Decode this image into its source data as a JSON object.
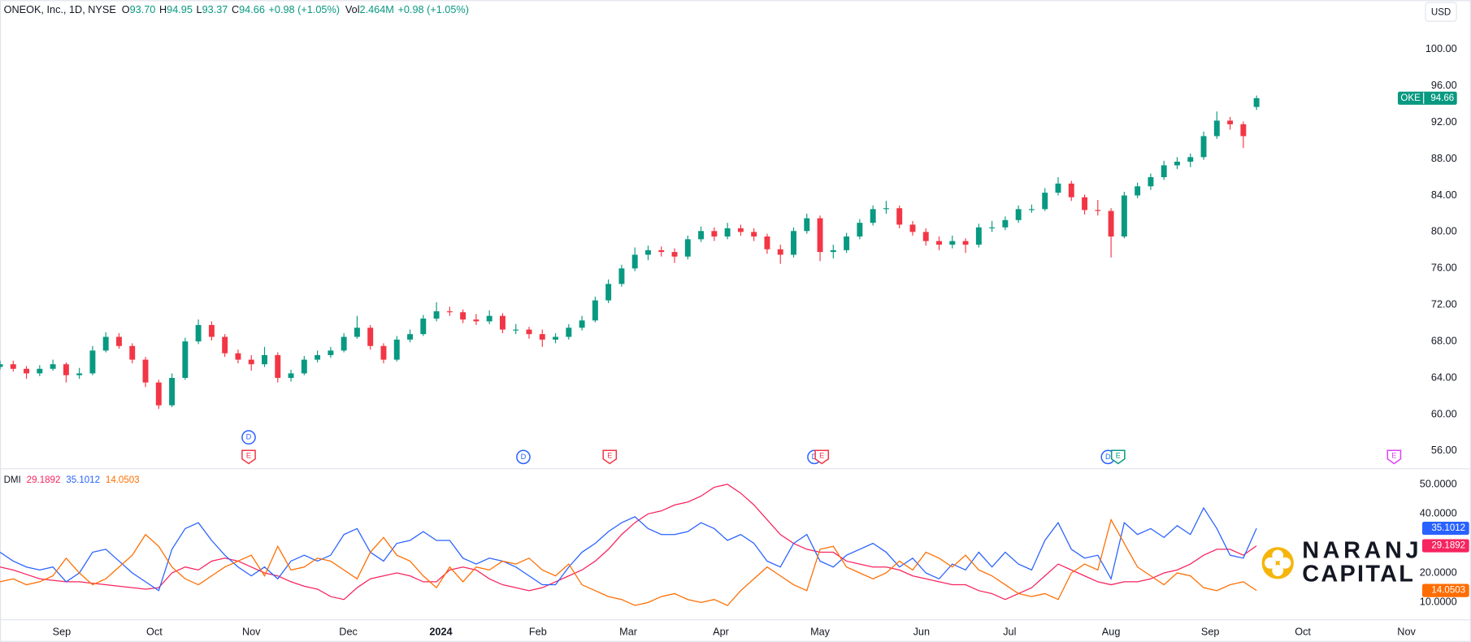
{
  "chart_data": [
    {
      "type": "candlestick",
      "legend": {
        "symbol": "ONEOK, Inc., 1D, NYSE",
        "fields": [
          {
            "label": "O",
            "value": "93.70"
          },
          {
            "label": "H",
            "value": "94.95"
          },
          {
            "label": "L",
            "value": "93.37"
          },
          {
            "label": "C",
            "value": "94.66"
          }
        ],
        "change": "+0.98 (+1.05%)",
        "volume_label": "Vol",
        "volume": "2.464M",
        "volume_change": "+0.98 (+1.05%)"
      },
      "currency": "USD",
      "up_color": "#089981",
      "down_color": "#f23645",
      "x": [
        0,
        3,
        6,
        9,
        12,
        15,
        18,
        21,
        24,
        27,
        30,
        33,
        36,
        39,
        42,
        45,
        48,
        51,
        54,
        57,
        60,
        63,
        66,
        69,
        72,
        75,
        78,
        81,
        84,
        87,
        90,
        93,
        96,
        99,
        102,
        105,
        108,
        111,
        114,
        117,
        120,
        123,
        126,
        129,
        132,
        135,
        138,
        141,
        144,
        147,
        150,
        153,
        156,
        159,
        162,
        165,
        168,
        171,
        174,
        177,
        180,
        183,
        186,
        189,
        192,
        195,
        198,
        201,
        204,
        207,
        210,
        213,
        216,
        219,
        222,
        225,
        228,
        231,
        234,
        237,
        240,
        243,
        246,
        249,
        252,
        255,
        258,
        261,
        264,
        267,
        270,
        273,
        276,
        279,
        282,
        285
      ],
      "ohlc": [
        [
          65.2,
          65.9,
          64.9,
          65.5
        ],
        [
          65.5,
          65.9,
          64.7,
          65
        ],
        [
          65,
          65.3,
          63.9,
          64.5
        ],
        [
          64.5,
          65.4,
          64.2,
          65
        ],
        [
          65,
          66,
          64.8,
          65.5
        ],
        [
          65.5,
          65.7,
          63.5,
          64.3
        ],
        [
          64.3,
          65.1,
          63.9,
          64.5
        ],
        [
          64.5,
          67.5,
          64.3,
          67
        ],
        [
          67,
          69,
          66.8,
          68.5
        ],
        [
          68.5,
          68.9,
          67.2,
          67.5
        ],
        [
          67.5,
          67.8,
          65.6,
          66
        ],
        [
          66,
          66.3,
          63,
          63.5
        ],
        [
          63.5,
          63.8,
          60.6,
          61
        ],
        [
          61,
          64.5,
          60.8,
          64
        ],
        [
          64,
          68.4,
          63.8,
          68
        ],
        [
          68,
          70.4,
          67.7,
          69.8
        ],
        [
          69.8,
          70.2,
          68.1,
          68.5
        ],
        [
          68.5,
          68.8,
          66.3,
          66.7
        ],
        [
          66.7,
          67.1,
          65.6,
          66
        ],
        [
          66,
          66.5,
          64.8,
          65.5
        ],
        [
          65.5,
          67.4,
          65.2,
          66.5
        ],
        [
          66.5,
          66.8,
          63.5,
          64
        ],
        [
          64,
          64.9,
          63.6,
          64.5
        ],
        [
          64.5,
          66.4,
          64.3,
          66
        ],
        [
          66,
          67,
          65.7,
          66.5
        ],
        [
          66.5,
          67.4,
          66.2,
          67
        ],
        [
          67,
          68.9,
          66.8,
          68.5
        ],
        [
          68.5,
          70.8,
          68.3,
          69.5
        ],
        [
          69.5,
          69.8,
          67.1,
          67.5
        ],
        [
          67.5,
          67.8,
          65.6,
          66
        ],
        [
          66,
          68.6,
          65.8,
          68.2
        ],
        [
          68.2,
          69.3,
          67.9,
          68.8
        ],
        [
          68.8,
          70.9,
          68.6,
          70.5
        ],
        [
          70.5,
          72.3,
          70.2,
          71.3
        ],
        [
          71.3,
          71.8,
          70.8,
          71.2
        ],
        [
          71.2,
          71.5,
          70,
          70.4
        ],
        [
          70.4,
          71,
          69.8,
          70.2
        ],
        [
          70.2,
          71.4,
          69.9,
          70.8
        ],
        [
          70.8,
          71.1,
          68.9,
          69.3
        ],
        [
          69.3,
          69.9,
          68.8,
          69.3
        ],
        [
          69.3,
          69.6,
          68.3,
          68.8
        ],
        [
          68.8,
          69.3,
          67.4,
          68.2
        ],
        [
          68.2,
          68.9,
          67.8,
          68.5
        ],
        [
          68.5,
          69.9,
          68.2,
          69.5
        ],
        [
          69.5,
          70.8,
          69.2,
          70.3
        ],
        [
          70.3,
          72.9,
          70.1,
          72.5
        ],
        [
          72.5,
          74.8,
          72.2,
          74.3
        ],
        [
          74.3,
          76.4,
          74,
          76
        ],
        [
          76,
          78.3,
          75.7,
          77.5
        ],
        [
          77.5,
          78.5,
          76.9,
          78
        ],
        [
          78,
          78.4,
          77.3,
          77.8
        ],
        [
          77.8,
          78.2,
          76.6,
          77.3
        ],
        [
          77.3,
          79.6,
          77,
          79.2
        ],
        [
          79.2,
          80.6,
          78.9,
          80.1
        ],
        [
          80.1,
          80.5,
          79,
          79.5
        ],
        [
          79.5,
          81,
          79.2,
          80.4
        ],
        [
          80.4,
          80.8,
          79.6,
          80
        ],
        [
          80,
          80.4,
          79,
          79.5
        ],
        [
          79.5,
          79.8,
          77.6,
          78.1
        ],
        [
          78.1,
          78.6,
          76.5,
          77.5
        ],
        [
          77.5,
          80.5,
          77.2,
          80.1
        ],
        [
          80.1,
          82,
          79.8,
          81.5
        ],
        [
          81.5,
          81.8,
          76.8,
          77.8
        ],
        [
          77.8,
          78.6,
          77.1,
          78
        ],
        [
          78,
          79.9,
          77.7,
          79.5
        ],
        [
          79.5,
          81.4,
          79.2,
          81
        ],
        [
          81,
          82.9,
          80.7,
          82.5
        ],
        [
          82.5,
          83.4,
          82,
          82.6
        ],
        [
          82.6,
          82.9,
          80.4,
          80.8
        ],
        [
          80.8,
          81.2,
          79.6,
          80
        ],
        [
          80,
          80.4,
          78.5,
          79
        ],
        [
          79,
          79.5,
          78,
          78.6
        ],
        [
          78.6,
          79.6,
          78.2,
          79
        ],
        [
          79,
          79.3,
          77.7,
          78.6
        ],
        [
          78.6,
          80.9,
          78.3,
          80.5
        ],
        [
          80.5,
          81.2,
          80,
          80.5
        ],
        [
          80.5,
          81.7,
          80.2,
          81.3
        ],
        [
          81.3,
          82.9,
          81,
          82.5
        ],
        [
          82.5,
          83,
          82.1,
          82.5
        ],
        [
          82.5,
          84.8,
          82.3,
          84.3
        ],
        [
          84.3,
          86,
          84,
          85.3
        ],
        [
          85.3,
          85.6,
          83.4,
          83.8
        ],
        [
          83.8,
          84.1,
          81.9,
          82.4
        ],
        [
          82.4,
          83.5,
          81.8,
          82.3
        ],
        [
          82.3,
          82.6,
          77.2,
          79.5
        ],
        [
          79.5,
          84.4,
          79.3,
          84
        ],
        [
          84,
          85.4,
          83.7,
          85
        ],
        [
          85,
          86.4,
          84.6,
          86
        ],
        [
          86,
          87.8,
          85.7,
          87.3
        ],
        [
          87.3,
          88.2,
          86.9,
          87.7
        ],
        [
          87.7,
          88.6,
          87.1,
          88.2
        ],
        [
          88.2,
          91,
          87.9,
          90.5
        ],
        [
          90.5,
          93.2,
          90.2,
          92.2
        ],
        [
          92.2,
          92.6,
          91.2,
          91.8
        ],
        [
          91.8,
          92.1,
          89.2,
          90.5
        ],
        [
          93.7,
          94.95,
          93.37,
          94.66
        ]
      ],
      "price_tag": {
        "label": "OKE",
        "value": 94.66,
        "color": "#089981"
      },
      "events": [
        {
          "label": "E",
          "x": 56.4,
          "color": "#f23645"
        },
        {
          "label": "D",
          "x": 56.4,
          "color": "#2962ff"
        },
        {
          "label": "D",
          "x": 118.7,
          "color": "#2962ff"
        },
        {
          "label": "E",
          "x": 138.3,
          "color": "#f23645"
        },
        {
          "label": "D",
          "x": 184.7,
          "color": "#2962ff"
        },
        {
          "label": "E",
          "x": 186.4,
          "color": "#f23645"
        },
        {
          "label": "D",
          "x": 251.3,
          "color": "#2962ff"
        },
        {
          "label": "E",
          "x": 253.6,
          "color": "#089981"
        },
        {
          "label": "E",
          "x": 316.2,
          "color": "#e040fb"
        }
      ],
      "xlim": [
        0,
        321.3
      ],
      "ylim": [
        54.2,
        105.4
      ],
      "yticks": [
        {
          "value": 100,
          "label": "100.00"
        },
        {
          "value": 96,
          "label": "96.00"
        },
        {
          "value": 92,
          "label": "92.00"
        },
        {
          "value": 88,
          "label": "88.00"
        },
        {
          "value": 84,
          "label": "84.00"
        },
        {
          "value": 80,
          "label": "80.00"
        },
        {
          "value": 76,
          "label": "76.00"
        },
        {
          "value": 72,
          "label": "72.00"
        },
        {
          "value": 68,
          "label": "68.00"
        },
        {
          "value": 64,
          "label": "64.00"
        },
        {
          "value": 60,
          "label": "60.00"
        },
        {
          "value": 56,
          "label": "56.00"
        }
      ],
      "grid": false
    },
    {
      "type": "line",
      "title": "DMI",
      "x": [
        0,
        3,
        6,
        9,
        12,
        15,
        18,
        21,
        24,
        27,
        30,
        33,
        36,
        39,
        42,
        45,
        48,
        51,
        54,
        57,
        60,
        63,
        66,
        69,
        72,
        75,
        78,
        81,
        84,
        87,
        90,
        93,
        96,
        99,
        102,
        105,
        108,
        111,
        114,
        117,
        120,
        123,
        126,
        129,
        132,
        135,
        138,
        141,
        144,
        147,
        150,
        153,
        156,
        159,
        162,
        165,
        168,
        171,
        174,
        177,
        180,
        183,
        186,
        189,
        192,
        195,
        198,
        201,
        204,
        207,
        210,
        213,
        216,
        219,
        222,
        225,
        228,
        231,
        234,
        237,
        240,
        243,
        246,
        249,
        252,
        255,
        258,
        261,
        264,
        267,
        270,
        273,
        276,
        279,
        282,
        285
      ],
      "series": [
        {
          "color": "#f7245f",
          "values": [
            22,
            21,
            19.5,
            18,
            17.5,
            17,
            17,
            16.5,
            16,
            15.5,
            15,
            14.5,
            15,
            20,
            22,
            21,
            24,
            25,
            24,
            22,
            20,
            19,
            17,
            15.5,
            14.5,
            12,
            11,
            15,
            18,
            19,
            20,
            19,
            17,
            17,
            21,
            22,
            21,
            18,
            16,
            15,
            14,
            15,
            17,
            19,
            21,
            24,
            28,
            33,
            37,
            40,
            41,
            43,
            44,
            46,
            49,
            50,
            47,
            43,
            38,
            33,
            30,
            28,
            27,
            27,
            24,
            23,
            22,
            22,
            21,
            19,
            18,
            17,
            16,
            16,
            14,
            13,
            11,
            13,
            15,
            19,
            23,
            21,
            19,
            17,
            16,
            17,
            17,
            18,
            20,
            21,
            23,
            26,
            28,
            28,
            26,
            29.1892
          ]
        },
        {
          "color": "#2962ff",
          "values": [
            27,
            24,
            22,
            21,
            22,
            17,
            20,
            27,
            28,
            24,
            20,
            17,
            14,
            28,
            35,
            37,
            31,
            26,
            22,
            19,
            22,
            18,
            24,
            26,
            24,
            26,
            33,
            35,
            27,
            24,
            30,
            31,
            34,
            31,
            31,
            25,
            23,
            25,
            24,
            22,
            19,
            16,
            16,
            22,
            27,
            30,
            34,
            37,
            39,
            35,
            33,
            33,
            34,
            37,
            35,
            31,
            33,
            30,
            24,
            22,
            30,
            33,
            24,
            22,
            26,
            28,
            30,
            27,
            22,
            25,
            20,
            18,
            23,
            21,
            27,
            22,
            27,
            23,
            21,
            31,
            37,
            28,
            25,
            26,
            18,
            37,
            33,
            35,
            32,
            36,
            33,
            42,
            35,
            26,
            25,
            35.1012
          ]
        },
        {
          "color": "#ff6d00",
          "values": [
            17,
            18,
            16,
            17,
            19,
            25,
            20,
            16,
            18,
            22,
            26,
            33,
            29,
            22,
            18,
            16,
            19,
            22,
            24,
            26,
            19,
            29,
            21,
            22,
            25,
            24,
            21,
            18,
            27,
            32,
            26,
            24,
            19,
            15,
            22,
            17,
            22,
            21,
            24,
            23,
            25,
            21,
            19,
            23,
            16,
            14,
            12,
            11,
            9,
            10,
            12,
            13,
            11,
            10,
            11,
            9,
            14,
            18,
            22,
            19,
            16,
            14,
            28,
            29,
            22,
            20,
            18,
            20,
            24,
            21,
            27,
            25,
            22,
            26,
            21,
            19,
            16,
            13,
            12,
            13,
            11,
            20,
            23,
            21,
            38,
            30,
            22,
            19,
            16,
            20,
            19,
            15,
            14,
            16,
            17,
            14.0503
          ]
        }
      ],
      "xlim": [
        0,
        321.3
      ],
      "xticks": [
        {
          "value": 14,
          "label": "Sep"
        },
        {
          "value": 35,
          "label": "Oct"
        },
        {
          "value": 57,
          "label": "Nov"
        },
        {
          "value": 79,
          "label": "Dec"
        },
        {
          "value": 100,
          "label": "2024"
        },
        {
          "value": 122,
          "label": "Feb"
        },
        {
          "value": 142.5,
          "label": "Mar"
        },
        {
          "value": 163.5,
          "label": "Apr"
        },
        {
          "value": 186,
          "label": "May"
        },
        {
          "value": 209,
          "label": "Jun"
        },
        {
          "value": 229,
          "label": "Jul"
        },
        {
          "value": 252,
          "label": "Aug"
        },
        {
          "value": 274.5,
          "label": "Sep"
        },
        {
          "value": 295.5,
          "label": "Oct"
        },
        {
          "value": 319,
          "label": "Nov"
        }
      ],
      "ylim": [
        4.3,
        55.1
      ],
      "yticks": [
        {
          "value": 50,
          "label": "50.0000"
        },
        {
          "value": 40,
          "label": "40.0000"
        },
        {
          "value": 20,
          "label": "20.0000"
        },
        {
          "value": 10,
          "label": "10.0000"
        }
      ],
      "grid": false
    }
  ],
  "watermark": [
    "NARANJ",
    "CAPITAL"
  ]
}
